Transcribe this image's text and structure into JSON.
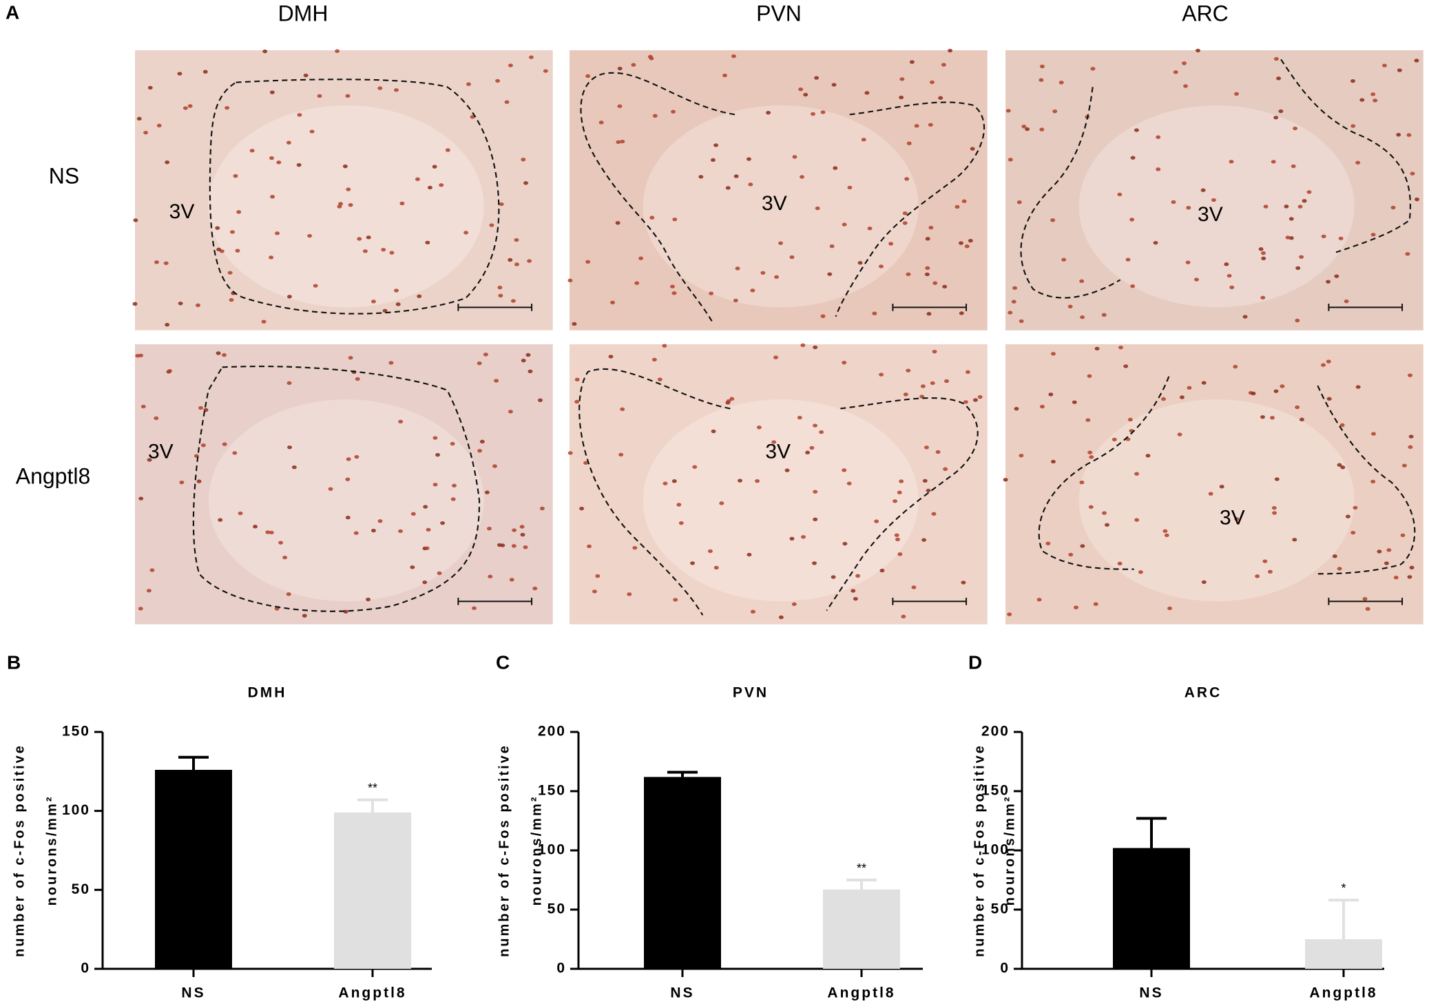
{
  "panel_a": {
    "label": "A",
    "columns": [
      "DMH",
      "PVN",
      "ARC"
    ],
    "rows": [
      "NS",
      "Angptl8"
    ],
    "ventricle_label": "3V"
  },
  "chart_data": [
    {
      "type": "bar",
      "panel": "B",
      "title": "DMH",
      "ylabel": [
        "number of c-Fos positive",
        "nourons/mm²"
      ],
      "categories": [
        "NS",
        "Angptl8"
      ],
      "values": [
        126,
        99
      ],
      "errors": [
        8,
        8
      ],
      "annotations": [
        null,
        "**"
      ],
      "colors": [
        "#000000",
        "#e0e0e0"
      ],
      "ylim": [
        0,
        150
      ],
      "yticks": [
        0,
        50,
        100,
        150
      ]
    },
    {
      "type": "bar",
      "panel": "C",
      "title": "PVN",
      "ylabel": [
        "number of c-Fos positive",
        "nourons/mm²"
      ],
      "categories": [
        "NS",
        "Angptl8"
      ],
      "values": [
        162,
        67
      ],
      "errors": [
        4,
        8
      ],
      "annotations": [
        null,
        "**"
      ],
      "colors": [
        "#000000",
        "#e0e0e0"
      ],
      "ylim": [
        0,
        200
      ],
      "yticks": [
        0,
        50,
        100,
        150,
        200
      ]
    },
    {
      "type": "bar",
      "panel": "D",
      "title": "ARC",
      "ylabel": [
        "number of c-Fos positive",
        "nourons/mm²"
      ],
      "categories": [
        "NS",
        "Angptl8"
      ],
      "values": [
        102,
        25
      ],
      "errors": [
        25,
        33
      ],
      "annotations": [
        null,
        "*"
      ],
      "colors": [
        "#000000",
        "#e0e0e0"
      ],
      "ylim": [
        0,
        200
      ],
      "yticks": [
        0,
        50,
        100,
        150,
        200
      ]
    }
  ]
}
